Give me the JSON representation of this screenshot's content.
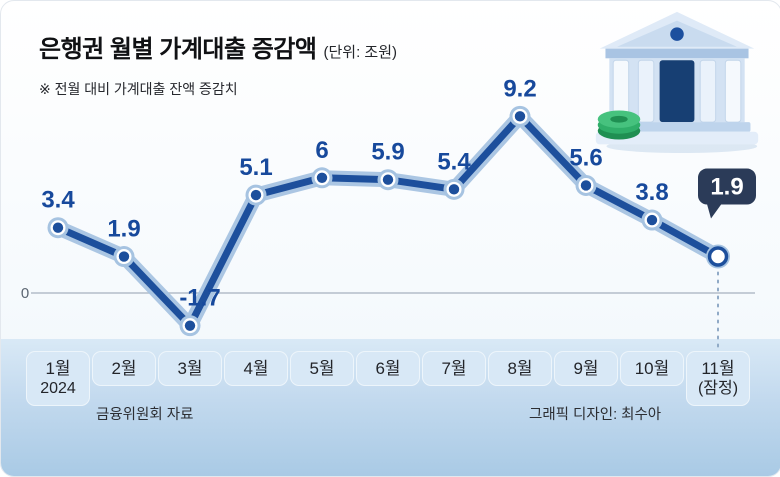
{
  "header": {
    "title": "은행권 월별 가계대출 증감액",
    "unit": "(단위: 조원)",
    "note": "※ 전월 대비 가계대출 잔액 증감치"
  },
  "footer": {
    "source": "금융위원회 자료",
    "credit": "그래픽 디자인: 최수아"
  },
  "icons": {
    "bank": "bank-building-icon"
  },
  "chart_data": {
    "type": "line",
    "title": "은행권 월별 가계대출 증감액",
    "unit": "조원",
    "categories": [
      "1월",
      "2월",
      "3월",
      "4월",
      "5월",
      "6월",
      "7월",
      "8월",
      "9월",
      "10월",
      "11월"
    ],
    "category_notes": [
      "2024",
      "",
      "",
      "",
      "",
      "",
      "",
      "",
      "",
      "",
      "(잠정)"
    ],
    "values": [
      3.4,
      1.9,
      -1.7,
      5.1,
      6,
      5.9,
      5.4,
      9.2,
      5.6,
      3.8,
      1.9
    ],
    "value_labels": [
      "3.4",
      "1.9",
      "-1.7",
      "5.1",
      "6",
      "5.9",
      "5.4",
      "9.2",
      "5.6",
      "3.8",
      "1.9"
    ],
    "zero_label": "0",
    "highlight_index": 10,
    "ylim": [
      -3,
      10
    ],
    "grid": false,
    "legend": "none",
    "line_color": "#1d4f9c",
    "halo_color": "#a6c3e1",
    "label_color": "#17499c",
    "badge_color": "#2b3b58",
    "badge_text_color": "#ffffff"
  }
}
